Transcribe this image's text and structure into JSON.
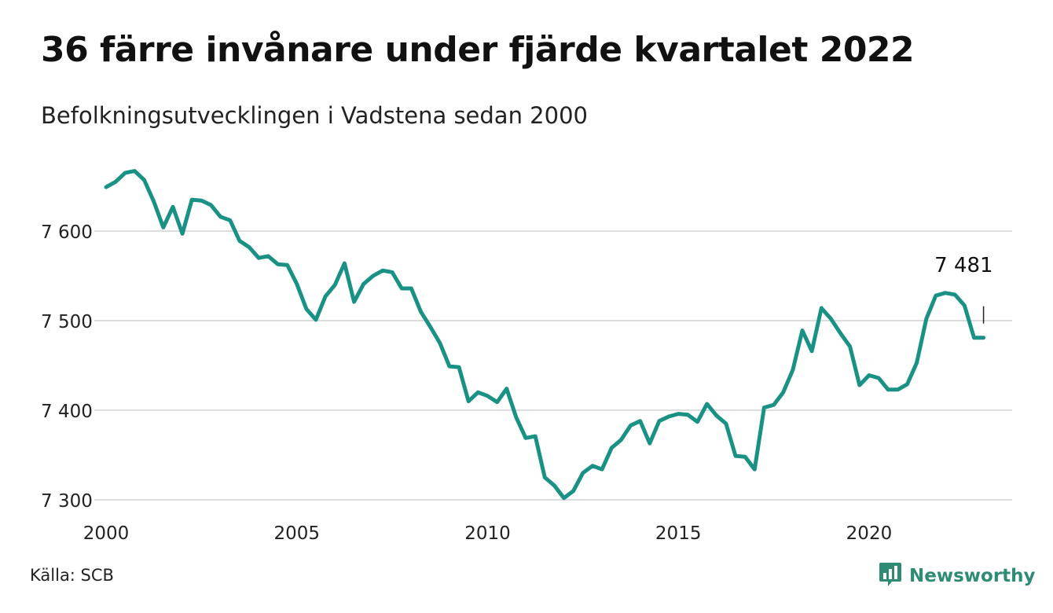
{
  "header": {
    "title": "36 färre invånare under fjärde kvartalet 2022",
    "subtitle": "Befolkningsutvecklingen i Vadstena sedan 2000"
  },
  "footer": {
    "source": "Källa: SCB",
    "brand": "Newsworthy",
    "brand_icon": "bar-chart-speech-bubble-icon"
  },
  "colors": {
    "line": "#1a9185",
    "grid": "#dddddd",
    "brand": "#2e8b74",
    "text": "#111111"
  },
  "chart_data": {
    "type": "line",
    "title": "36 färre invånare under fjärde kvartalet 2022",
    "subtitle": "Befolkningsutvecklingen i Vadstena sedan 2000",
    "xlabel": "",
    "ylabel": "",
    "xlim": [
      2000,
      2023.75
    ],
    "ylim": [
      7300,
      7680
    ],
    "y_ticks": [
      7300,
      7400,
      7500,
      7600
    ],
    "y_tick_labels": [
      "7 300",
      "7 400",
      "7 500",
      "7 600"
    ],
    "x_ticks": [
      2000,
      2005,
      2010,
      2015,
      2020
    ],
    "x_tick_labels": [
      "2000",
      "2005",
      "2010",
      "2015",
      "2020"
    ],
    "grid": "horizontal",
    "end_label": "7 481",
    "series": [
      {
        "x": [
          2000.0,
          2000.25,
          2000.5,
          2000.75,
          2001.0,
          2001.25,
          2001.5,
          2001.75,
          2002.0,
          2002.25,
          2002.5,
          2002.75,
          2003.0,
          2003.25,
          2003.5,
          2003.75,
          2004.0,
          2004.25,
          2004.5,
          2004.75,
          2005.0,
          2005.25,
          2005.5,
          2005.75,
          2006.0,
          2006.25,
          2006.5,
          2006.75,
          2007.0,
          2007.25,
          2007.5,
          2007.75,
          2008.0,
          2008.25,
          2008.5,
          2008.75,
          2009.0,
          2009.25,
          2009.5,
          2009.75,
          2010.0,
          2010.25,
          2010.5,
          2010.75,
          2011.0,
          2011.25,
          2011.5,
          2011.75,
          2012.0,
          2012.25,
          2012.5,
          2012.75,
          2013.0,
          2013.25,
          2013.5,
          2013.75,
          2014.0,
          2014.25,
          2014.5,
          2014.75,
          2015.0,
          2015.25,
          2015.5,
          2015.75,
          2016.0,
          2016.25,
          2016.5,
          2016.75,
          2017.0,
          2017.25,
          2017.5,
          2017.75,
          2018.0,
          2018.25,
          2018.5,
          2018.75,
          2019.0,
          2019.25,
          2019.5,
          2019.75,
          2020.0,
          2020.25,
          2020.5,
          2020.75,
          2021.0,
          2021.25,
          2021.5,
          2021.75,
          2022.0,
          2022.25,
          2022.5,
          2022.75,
          2023.0
        ],
        "y": [
          7649,
          7655,
          7665,
          7667,
          7657,
          7633,
          7604,
          7627,
          7597,
          7635,
          7634,
          7629,
          7616,
          7612,
          7589,
          7582,
          7570,
          7572,
          7563,
          7562,
          7541,
          7513,
          7501,
          7527,
          7540,
          7564,
          7521,
          7541,
          7550,
          7556,
          7554,
          7536,
          7536,
          7510,
          7493,
          7475,
          7449,
          7448,
          7410,
          7420,
          7416,
          7409,
          7424,
          7392,
          7369,
          7371,
          7325,
          7316,
          7302,
          7310,
          7330,
          7338,
          7334,
          7358,
          7367,
          7383,
          7388,
          7363,
          7388,
          7393,
          7396,
          7395,
          7387,
          7407,
          7394,
          7385,
          7349,
          7348,
          7334,
          7403,
          7406,
          7420,
          7445,
          7489,
          7466,
          7514,
          7502,
          7486,
          7471,
          7428,
          7439,
          7436,
          7423,
          7423,
          7429,
          7453,
          7502,
          7528,
          7531,
          7529,
          7517,
          7481,
          7481
        ]
      }
    ]
  }
}
